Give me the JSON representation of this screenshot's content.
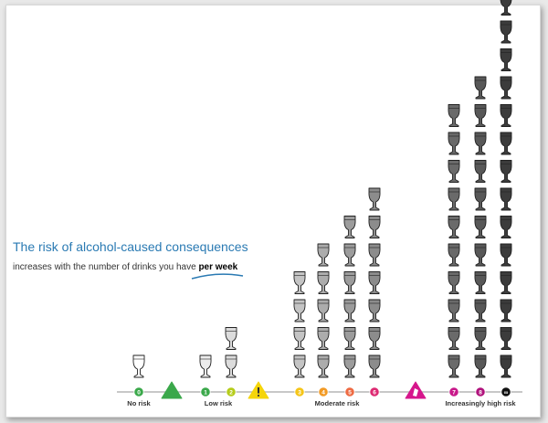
{
  "header": {
    "title": "The risk of alcohol-caused consequences",
    "subtitle_main": "increases with the number of drinks you have ",
    "subtitle_emph": "per week"
  },
  "chart_data": {
    "type": "bar",
    "title": "The risk of alcohol-caused consequences",
    "categories": [
      "0",
      "1",
      "2",
      "3",
      "4",
      "5",
      "6",
      "7",
      "8",
      "9"
    ],
    "values": [
      1,
      1,
      2,
      4,
      5,
      6,
      7,
      10,
      11,
      15
    ],
    "tick_labels": [
      "0",
      "1",
      "2",
      "3",
      "4",
      "5",
      "6",
      "7",
      "8",
      "∞"
    ],
    "groups": [
      {
        "label": "No risk",
        "categories": [
          "0"
        ],
        "color": "#3aa84a"
      },
      {
        "label": "Low risk",
        "categories": [
          "1",
          "2"
        ],
        "color": "#3aa84a"
      },
      {
        "label": "Moderate risk",
        "categories": [
          "3",
          "4",
          "5",
          "6"
        ],
        "color": "#f5c518"
      },
      {
        "label": "Increasingly high risk",
        "categories": [
          "7",
          "8",
          "9"
        ],
        "color": "#d6168c"
      }
    ],
    "tick_colors": [
      "#3aa84a",
      "#3aa84a",
      "#b5cc1a",
      "#f5c518",
      "#f29a24",
      "#ee6b43",
      "#dd2a72",
      "#c8188a",
      "#b0127c",
      "#111111"
    ],
    "glass_shades": [
      "#ffffff",
      "#ececec",
      "#dcdcdc",
      "#c4c4c4",
      "#acacac",
      "#9c9c9c",
      "#8c8c8c",
      "#6a6a6a",
      "#585858",
      "#3c3c3c"
    ],
    "separators": [
      {
        "shape": "triangle",
        "color": "#3aa84a"
      },
      {
        "shape": "warning",
        "color": "#f5d50a"
      },
      {
        "shape": "alert",
        "color": "#d6168c"
      }
    ],
    "grid": false,
    "legend": "none"
  }
}
